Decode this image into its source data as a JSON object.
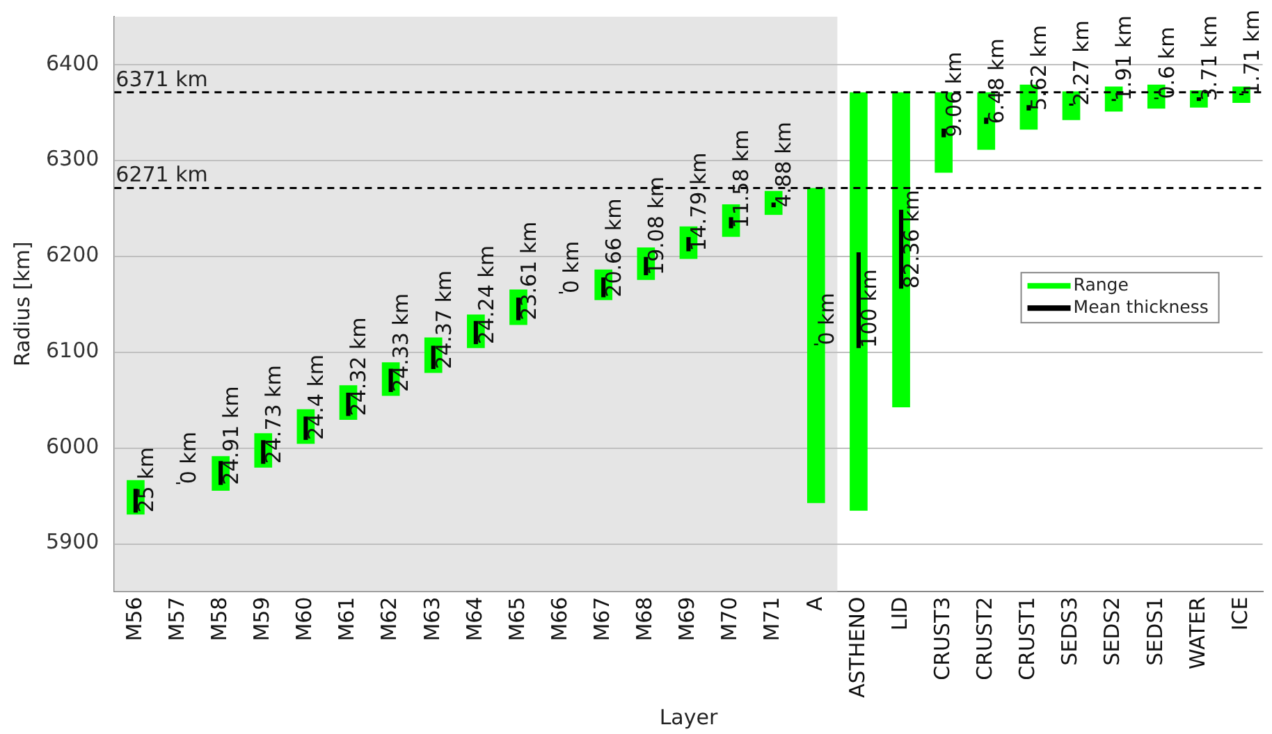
{
  "chart_data": {
    "type": "bar",
    "xlabel": "Layer",
    "ylabel": "Radius [km]",
    "categories": [
      "M56",
      "M57",
      "M58",
      "M59",
      "M60",
      "M61",
      "M62",
      "M63",
      "M64",
      "M65",
      "M66",
      "M67",
      "M68",
      "M69",
      "M70",
      "M71",
      "A",
      "ASTHENO",
      "LID",
      "CRUST3",
      "CRUST2",
      "CRUST1",
      "SEDS3",
      "SEDS2",
      "SEDS1",
      "WATER",
      "ICE"
    ],
    "series": [
      {
        "name": "Range",
        "color": "#00ff00",
        "base": [
          5930,
          null,
          5955,
          5979,
          6004,
          6029,
          6054,
          6078,
          6104,
          6128,
          null,
          6154,
          6175,
          6197,
          6220,
          6243,
          5942,
          5934,
          6042,
          6287,
          6311,
          6332,
          6342,
          6351,
          6354,
          6355,
          6360
        ],
        "values": [
          36,
          null,
          36,
          36,
          36,
          36,
          35,
          37,
          35,
          37,
          null,
          32,
          34,
          34,
          34,
          25,
          329,
          437,
          329,
          84,
          60,
          47,
          30,
          26,
          25,
          18,
          17
        ]
      },
      {
        "name": "Mean thickness",
        "color": "#000000",
        "base": [
          5932,
          5962,
          5961,
          5983,
          6008,
          6033,
          6058,
          6082,
          6108,
          6133,
          6161,
          6157,
          6180,
          6205,
          6229,
          6251,
          6107,
          6104,
          6166,
          6324,
          6338,
          6352,
          6357,
          6362,
          6364,
          6362,
          6368
        ],
        "values": [
          25,
          0,
          24.91,
          24.73,
          24.4,
          24.32,
          24.33,
          24.37,
          24.24,
          23.61,
          0,
          20.66,
          19.08,
          14.79,
          11.58,
          4.88,
          0,
          100,
          82.36,
          9.06,
          6.48,
          5.62,
          2.27,
          1.91,
          0.6,
          3.71,
          1.71
        ],
        "value_labels": [
          "25 km",
          "0 km",
          "24.91 km",
          "24.73 km",
          "24.4 km",
          "24.32 km",
          "24.33 km",
          "24.37 km",
          "24.24 km",
          "23.61 km",
          "0 km",
          "20.66 km",
          "19.08 km",
          "14.79 km",
          "11.58 km",
          "4.88 km",
          "0 km",
          "100 km",
          "82.36 km",
          "9.06 km",
          "6.48 km",
          "5.62 km",
          "2.27 km",
          "1.91 km",
          "0.6 km",
          "3.71 km",
          "1.71 km"
        ]
      }
    ],
    "ylim": [
      5850,
      6450
    ],
    "yticks": [
      5900,
      6000,
      6100,
      6200,
      6300,
      6400
    ],
    "ref_lines": [
      {
        "axis": "y",
        "value": 6371,
        "label": "6371 km",
        "color": "#000000",
        "line_style": "dashed"
      },
      {
        "axis": "y",
        "value": 6271,
        "label": "6271 km",
        "color": "#000000",
        "line_style": "dashed"
      }
    ],
    "bands": [
      {
        "axis": "x",
        "from": "M56",
        "to": "A",
        "color": "#e5e5e5"
      }
    ],
    "grid": "y",
    "legend": "right"
  }
}
